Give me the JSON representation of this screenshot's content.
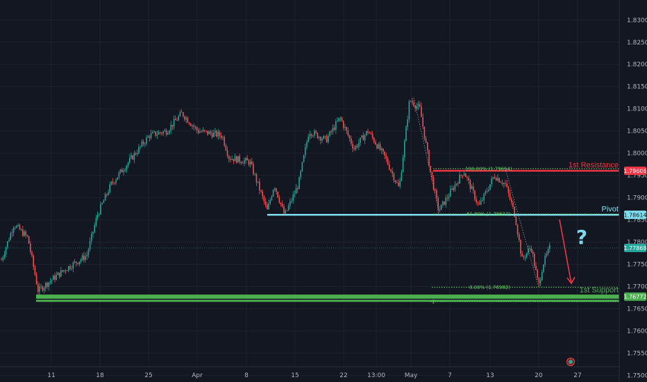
{
  "chart_data": {
    "type": "candlestick",
    "instrument_note": "",
    "y_axis": {
      "ticks": [
        "1.83000",
        "1.82500",
        "1.82000",
        "1.81500",
        "1.81000",
        "1.80500",
        "1.80000",
        "1.79500",
        "1.79000",
        "1.78500",
        "1.78000",
        "1.77500",
        "1.77000",
        "1.76500",
        "1.76000",
        "1.75500",
        "1.75000"
      ],
      "ylim": [
        1.7485,
        1.8345
      ]
    },
    "x_axis": {
      "ticks": [
        "11",
        "18",
        "25",
        "Apr",
        "8",
        "15",
        "22",
        "13:00",
        "May",
        "7",
        "13",
        "20",
        "27"
      ]
    },
    "grid": true,
    "levels": [
      {
        "name": "1st Resistance",
        "value": 1.79606,
        "tag": "1.79606",
        "color": "#f23645"
      },
      {
        "name": "Pivot",
        "value": 1.78614,
        "tag": "1.78614",
        "color": "#7fe0f0"
      },
      {
        "name": "1st Support",
        "value": 1.76772,
        "tag": "1.76772",
        "color": "#4caf50"
      }
    ],
    "last_price": {
      "value": 1.77868,
      "tag": "1.77868",
      "color": "#26a69a"
    },
    "fib_labels": [
      {
        "text": "100.00% (1.79654)",
        "price": 1.79654
      },
      {
        "text": "61.80% (1.78633)",
        "price": 1.78633
      },
      {
        "text": "0.00% (1.76982)",
        "price": 1.76982
      },
      {
        "text": "1",
        "price": 1.7666
      }
    ],
    "annotation": "?",
    "up_color": "#26a69a",
    "down_color": "#ef5350"
  }
}
